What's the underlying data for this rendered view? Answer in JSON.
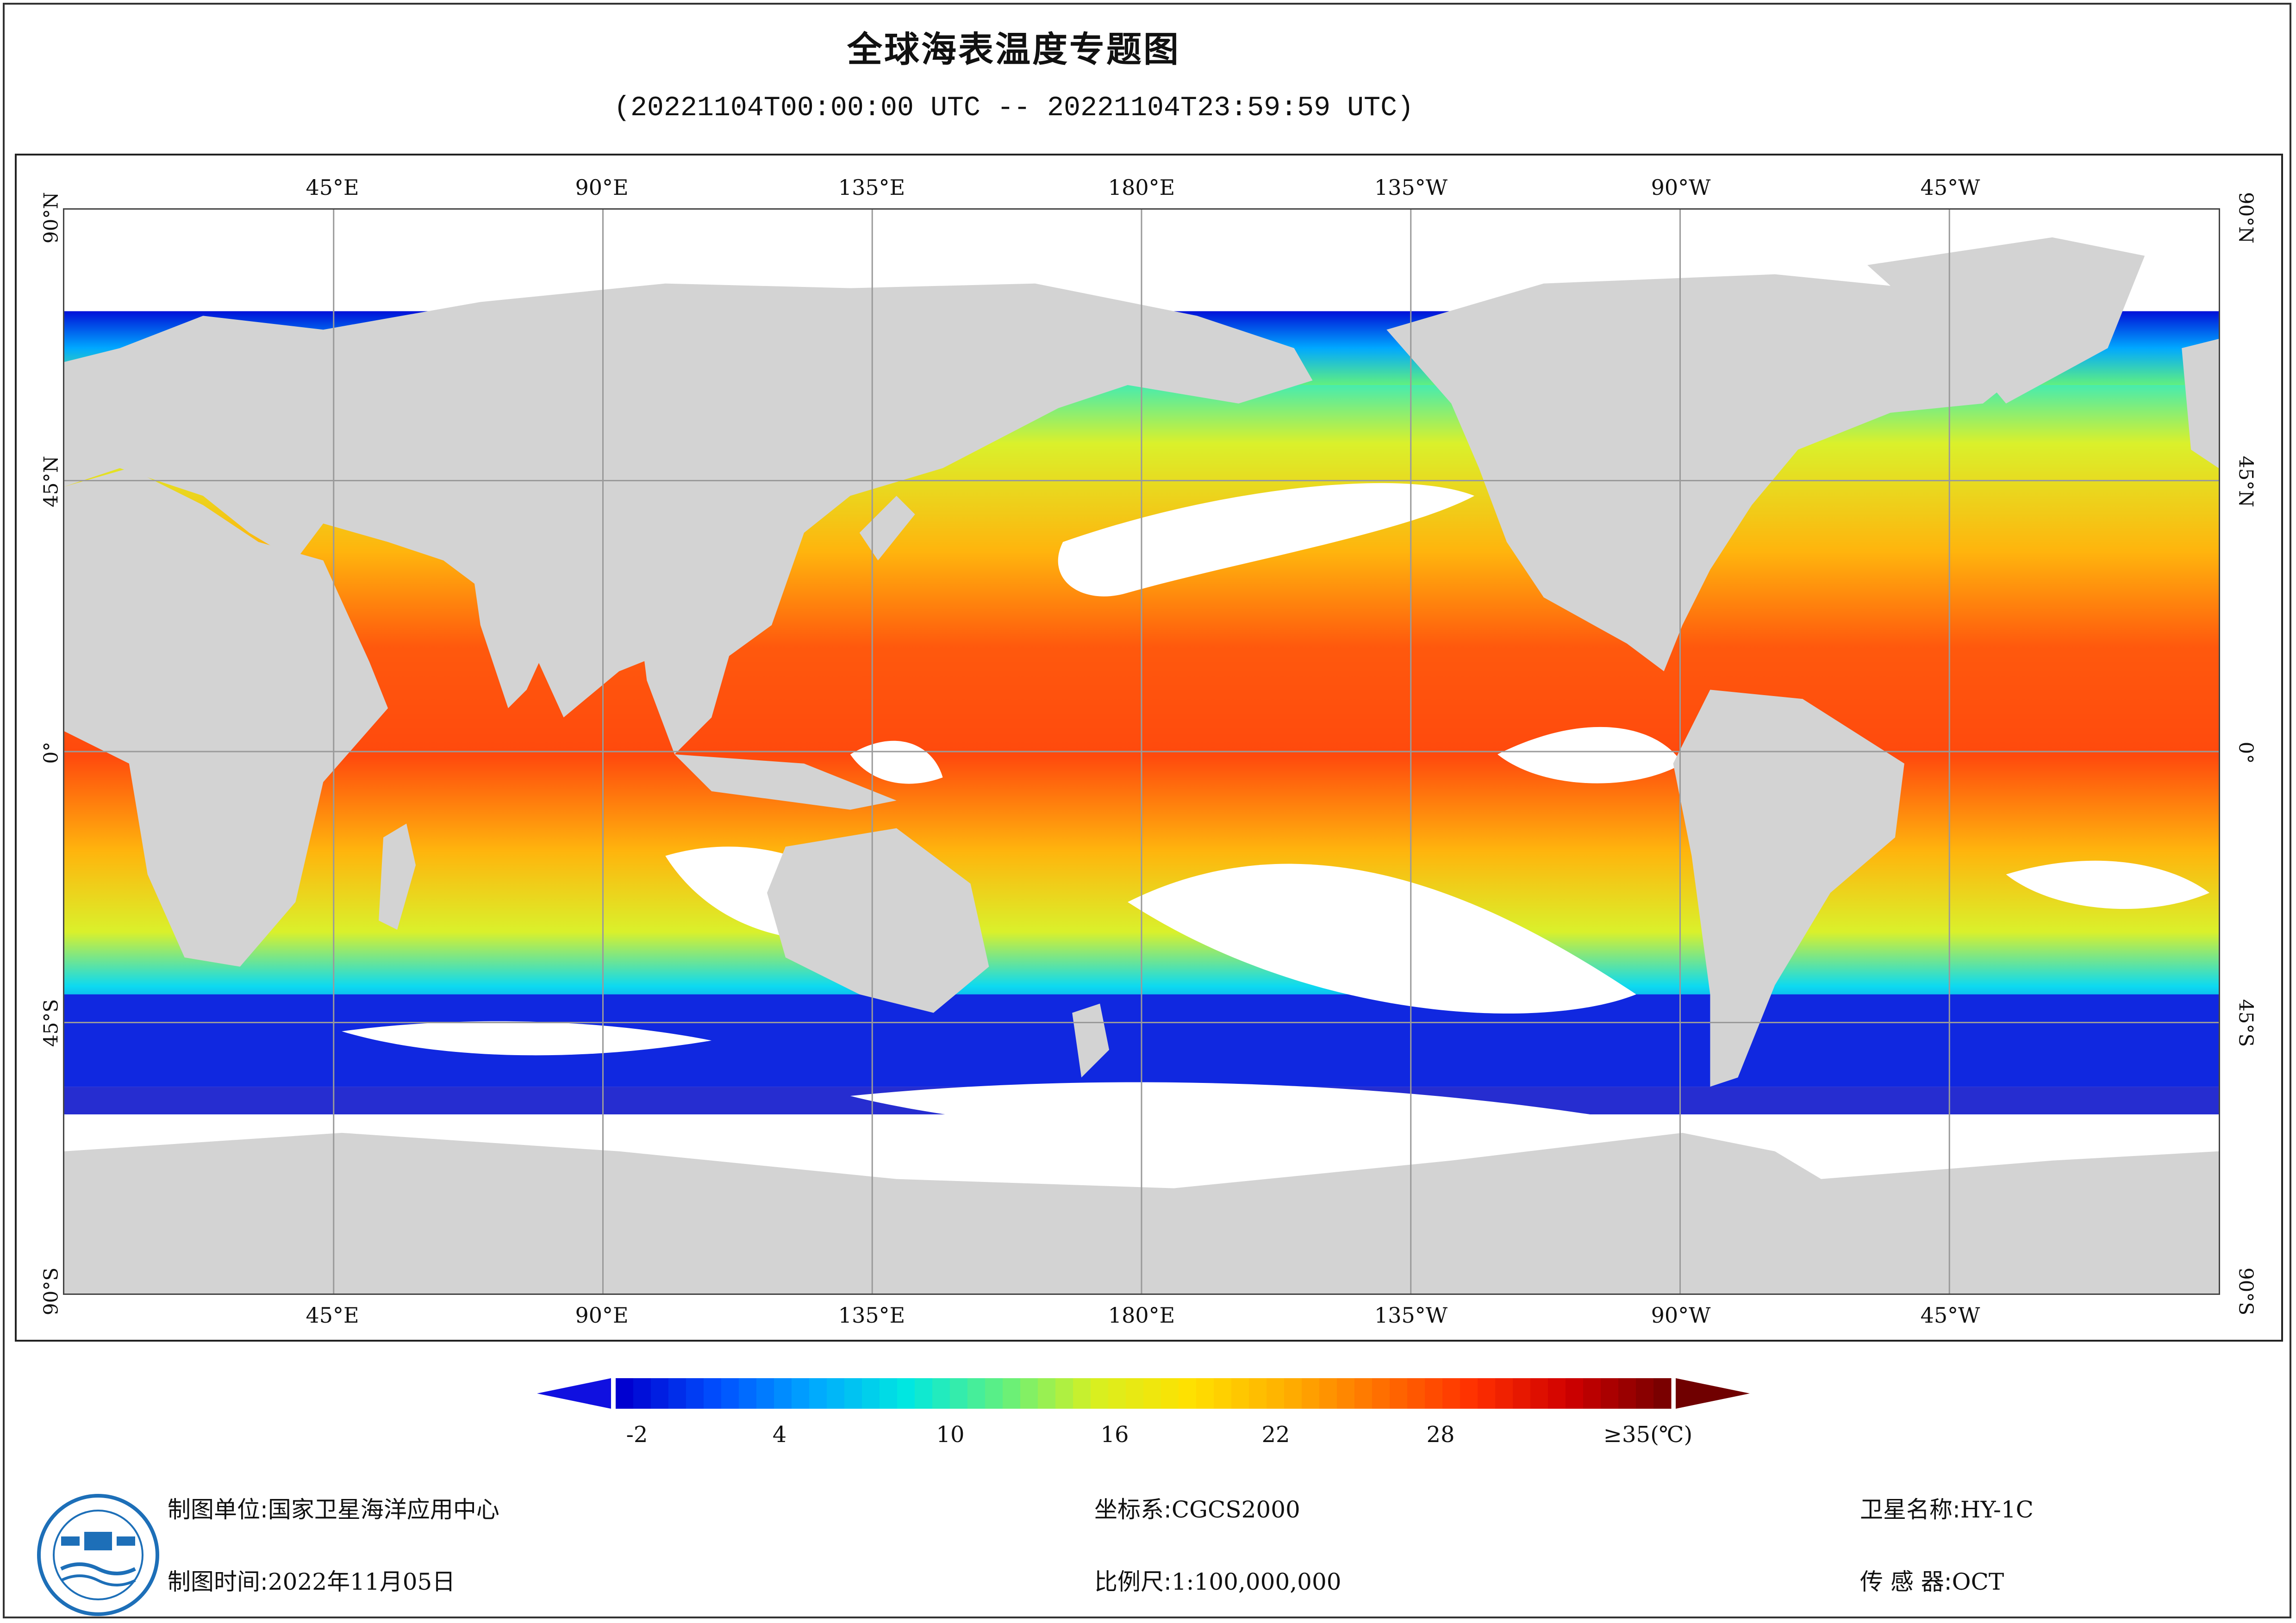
{
  "title": "全球海表温度专题图",
  "subtitle": "(20221104T00:00:00 UTC -- 20221104T23:59:59 UTC)",
  "map": {
    "projection": "equirectangular",
    "center_longitude": "0°",
    "land_color": "#d3d3d3",
    "no_data_color": "#ffffff",
    "graticule_color": "#9a9a9a",
    "lon_labels": [
      "45°E",
      "90°E",
      "135°E",
      "180°E",
      "135°W",
      "90°W",
      "45°W"
    ],
    "lat_labels": [
      "90°N",
      "45°N",
      "0°",
      "45°S",
      "90°S"
    ]
  },
  "colorbar": {
    "ticks": [
      "-2",
      "4",
      "10",
      "16",
      "22",
      "28",
      "≥35(℃)"
    ],
    "min": -2,
    "max": 35,
    "unit": "℃",
    "colors": [
      "#0000d0",
      "#0050ff",
      "#00a8ff",
      "#00e8e0",
      "#60f080",
      "#d8f020",
      "#ffe000",
      "#ffb000",
      "#ff7000",
      "#ff3000",
      "#d00000",
      "#7a0000"
    ],
    "under_color": "#1010e0",
    "over_color": "#700000"
  },
  "footer": {
    "organization_label": "制图单位:",
    "organization_value": "国家卫星海洋应用中心",
    "date_label": "制图时间:",
    "date_value": "2022年11月05日",
    "crs_label": "坐标系:",
    "crs_value": "CGCS2000",
    "scale_label": "比例尺:",
    "scale_value": "1:100,000,000",
    "satellite_label": "卫星名称:",
    "satellite_value": "HY-1C",
    "sensor_label": "传 感 器:",
    "sensor_value": "OCT"
  },
  "logo": {
    "icon": "satellite-ocean-logo",
    "color": "#1d6fb8"
  }
}
